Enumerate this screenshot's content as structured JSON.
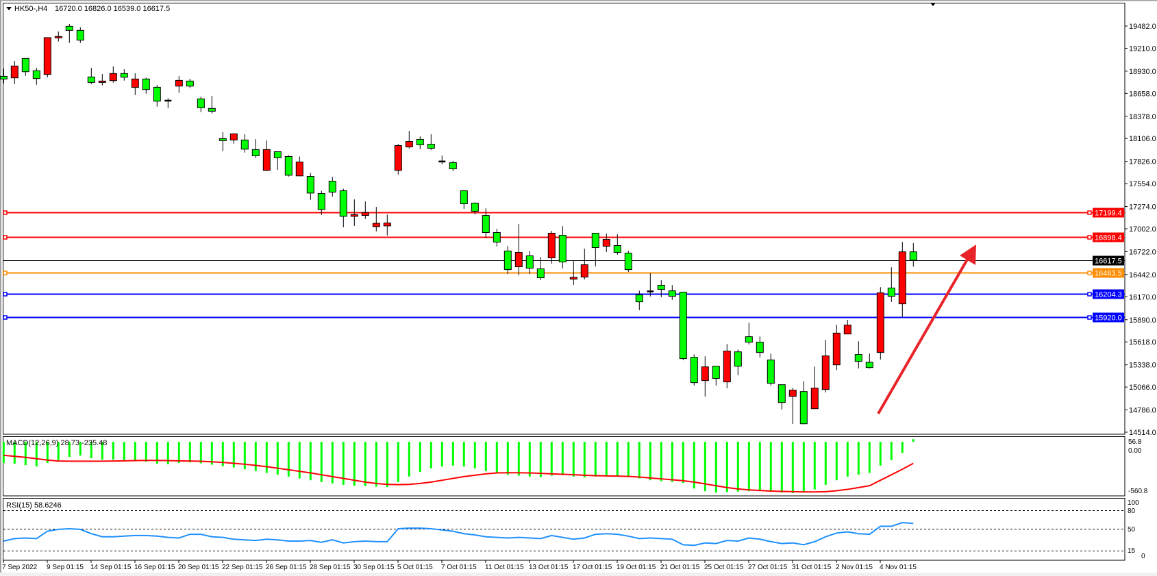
{
  "header": {
    "symbol": "HK50-,H4",
    "ohlc": "16720.0 16826.0 16539.0 16617.5"
  },
  "colors": {
    "bull_candle": "#ff0000",
    "bear_candle": "#00ff00",
    "macd_histogram": "#00ff00",
    "macd_signal": "#ff0000",
    "rsi_line": "#1e90ff",
    "trend_arrow": "#e8232a"
  },
  "chart_data": [
    {
      "type": "candlestick",
      "title": "HK50-,H4",
      "ylim": [
        14514.0,
        19482.0
      ],
      "y_tick_labels": [
        "19482.0",
        "19210.0",
        "18930.0",
        "18658.0",
        "18378.0",
        "18106.0",
        "17826.0",
        "17554.0",
        "17274.0",
        "17002.0",
        "16722.0",
        "16442.0",
        "16170.0",
        "15890.0",
        "15618.0",
        "15338.0",
        "15066.0",
        "14786.0",
        "14514.0"
      ],
      "x_tick_labels": [
        "7 Sep 2022",
        "9 Sep 01:15",
        "14 Sep 01:15",
        "16 Sep 01:15",
        "20 Sep 01:15",
        "22 Sep 01:15",
        "26 Sep 01:15",
        "28 Sep 01:15",
        "30 Sep 01:15",
        "5 Oct 01:15",
        "7 Oct 01:15",
        "11 Oct 01:15",
        "13 Oct 01:15",
        "17 Oct 01:15",
        "19 Oct 01:15",
        "21 Oct 01:15",
        "25 Oct 01:15",
        "27 Oct 01:15",
        "31 Oct 01:15",
        "2 Nov 01:15",
        "4 Nov 01:15"
      ],
      "grid": false,
      "candle_fields": [
        "open",
        "high",
        "low",
        "close"
      ],
      "candles": [
        [
          18867,
          18962,
          18780,
          18834
        ],
        [
          18848,
          19055,
          18770,
          18993
        ],
        [
          19085,
          19085,
          18873,
          18923
        ],
        [
          18935,
          18971,
          18764,
          18840
        ],
        [
          18890,
          19340,
          18854,
          19340
        ],
        [
          19337,
          19415,
          19292,
          19354
        ],
        [
          19479,
          19507,
          19275,
          19429
        ],
        [
          19429,
          19465,
          19275,
          19309
        ],
        [
          18859,
          18971,
          18772,
          18792
        ],
        [
          18792,
          18895,
          18756,
          18809
        ],
        [
          18814,
          18988,
          18789,
          18901
        ],
        [
          18901,
          18954,
          18814,
          18856
        ],
        [
          18731,
          18904,
          18638,
          18834
        ],
        [
          18834,
          18851,
          18655,
          18705
        ],
        [
          18733,
          18761,
          18496,
          18563
        ],
        [
          18571,
          18599,
          18479,
          18571
        ],
        [
          18747,
          18870,
          18664,
          18817
        ],
        [
          18809,
          18837,
          18722,
          18747
        ],
        [
          18591,
          18619,
          18429,
          18482
        ],
        [
          18474,
          18627,
          18412,
          18440
        ],
        [
          18105,
          18183,
          17951,
          18080
        ],
        [
          18088,
          18172,
          18043,
          18163
        ],
        [
          18088,
          18158,
          17934,
          17976
        ],
        [
          17971,
          18099,
          17867,
          17895
        ],
        [
          17716,
          18082,
          17708,
          17971
        ],
        [
          17945,
          17945,
          17722,
          17870
        ],
        [
          17886,
          17903,
          17640,
          17657
        ],
        [
          17649,
          17886,
          17649,
          17819
        ],
        [
          17643,
          17685,
          17355,
          17439
        ],
        [
          17433,
          17467,
          17171,
          17238
        ],
        [
          17584,
          17635,
          17397,
          17450
        ],
        [
          17467,
          17492,
          17020,
          17154
        ],
        [
          17154,
          17361,
          17037,
          17174
        ],
        [
          17165,
          17336,
          17121,
          17201
        ],
        [
          17028,
          17269,
          16970,
          17069
        ],
        [
          17037,
          17176,
          16919,
          17073
        ],
        [
          17716,
          18040,
          17665,
          18020
        ],
        [
          18003,
          18199,
          17984,
          18070
        ],
        [
          18096,
          18132,
          17975,
          18029
        ],
        [
          18037,
          18157,
          17967,
          17987
        ],
        [
          17827,
          17897,
          17791,
          17827
        ],
        [
          17811,
          17830,
          17707,
          17735
        ],
        [
          17467,
          17467,
          17246,
          17308
        ],
        [
          17316,
          17324,
          17179,
          17216
        ],
        [
          17165,
          17252,
          16886,
          16956
        ],
        [
          16956,
          17001,
          16786,
          16839
        ],
        [
          16730,
          16791,
          16447,
          16503
        ],
        [
          16537,
          17059,
          16433,
          16713
        ],
        [
          16671,
          16732,
          16447,
          16520
        ],
        [
          16512,
          16657,
          16375,
          16403
        ],
        [
          16646,
          16976,
          16576,
          16948
        ],
        [
          16922,
          17034,
          16517,
          16596
        ],
        [
          16386,
          16607,
          16316,
          16408
        ],
        [
          16411,
          16758,
          16383,
          16562
        ],
        [
          16948,
          16948,
          16542,
          16772
        ],
        [
          16788,
          16942,
          16718,
          16872
        ],
        [
          16797,
          16934,
          16685,
          16713
        ],
        [
          16704,
          16732,
          16475,
          16503
        ],
        [
          16193,
          16246,
          16006,
          16109
        ],
        [
          16238,
          16459,
          16174,
          16238
        ],
        [
          16311,
          16372,
          16165,
          16260
        ],
        [
          16243,
          16313,
          16132,
          16176
        ],
        [
          16227,
          16227,
          15394,
          15414
        ],
        [
          15430,
          15467,
          15084,
          15120
        ],
        [
          15145,
          15442,
          14950,
          15313
        ],
        [
          15321,
          15321,
          15084,
          15171
        ],
        [
          15129,
          15593,
          15050,
          15506
        ],
        [
          15497,
          15525,
          15210,
          15321
        ],
        [
          15682,
          15852,
          15587,
          15615
        ],
        [
          15615,
          15685,
          15428,
          15489
        ],
        [
          15397,
          15475,
          15084,
          15112
        ],
        [
          15095,
          15095,
          14790,
          14877
        ],
        [
          14952,
          15056,
          14614,
          15028
        ],
        [
          15011,
          15137,
          14609,
          14617
        ],
        [
          14801,
          15316,
          14801,
          15053
        ],
        [
          15036,
          15642,
          15000,
          15447
        ],
        [
          15338,
          15827,
          15276,
          15726
        ],
        [
          15715,
          15888,
          15715,
          15824
        ],
        [
          15464,
          15626,
          15293,
          15380
        ],
        [
          15369,
          15475,
          15293,
          15304
        ],
        [
          15489,
          16288,
          15402,
          16218
        ],
        [
          16277,
          16531,
          16106,
          16176
        ],
        [
          16084,
          16841,
          15925,
          16720
        ],
        [
          16720,
          16826,
          16539,
          16617.5
        ]
      ],
      "price_lines": [
        {
          "price": 17199.4,
          "label": "17199.4",
          "color": "#ff0000"
        },
        {
          "price": 16898.4,
          "label": "16898.4",
          "color": "#ff0000"
        },
        {
          "price": 16617.5,
          "label": "16617.5",
          "color": "#000000",
          "current": true
        },
        {
          "price": 16463.5,
          "label": "16463.5",
          "color": "#ff8c00"
        },
        {
          "price": 16204.3,
          "label": "16204.3",
          "color": "#0000ff"
        },
        {
          "price": 15920.0,
          "label": "15920.0",
          "color": "#0000ff"
        }
      ]
    },
    {
      "type": "bar",
      "title": "MACD(12,26,9) 28.73 -235.48",
      "ylim": [
        -560.8,
        56.8
      ],
      "y_tick_labels": [
        "56.8",
        "0.00",
        "-560.8"
      ],
      "series": [
        {
          "values": [
            -232,
            -240,
            -255,
            -269,
            -232,
            -202,
            -165,
            -150,
            -180,
            -195,
            -195,
            -200,
            -210,
            -218,
            -240,
            -245,
            -232,
            -225,
            -235,
            -250,
            -265,
            -280,
            -300,
            -320,
            -340,
            -360,
            -380,
            -400,
            -420,
            -440,
            -455,
            -470,
            -480,
            -485,
            -490,
            -495,
            -440,
            -380,
            -330,
            -290,
            -270,
            -260,
            -270,
            -290,
            -320,
            -340,
            -360,
            -370,
            -380,
            -385,
            -370,
            -365,
            -380,
            -390,
            -380,
            -370,
            -370,
            -380,
            -400,
            -420,
            -430,
            -440,
            -450,
            -510,
            -540,
            -555,
            -550,
            -545,
            -540,
            -530,
            -540,
            -555,
            -560,
            -555,
            -520,
            -470,
            -420,
            -380,
            -360,
            -340,
            -260,
            -200,
            -120,
            28.73
          ]
        },
        {
          "type": "line",
          "values": [
            -147,
            -158,
            -170,
            -185,
            -200,
            -210,
            -212,
            -212,
            -212,
            -212,
            -210,
            -208,
            -205,
            -203,
            -203,
            -205,
            -208,
            -210,
            -213,
            -218,
            -225,
            -235,
            -245,
            -258,
            -272,
            -288,
            -305,
            -322,
            -340,
            -360,
            -380,
            -400,
            -420,
            -440,
            -455,
            -465,
            -468,
            -465,
            -455,
            -440,
            -420,
            -400,
            -380,
            -365,
            -350,
            -340,
            -338,
            -338,
            -340,
            -345,
            -350,
            -355,
            -360,
            -365,
            -370,
            -373,
            -375,
            -378,
            -385,
            -395,
            -405,
            -415,
            -425,
            -440,
            -460,
            -480,
            -500,
            -515,
            -525,
            -532,
            -538,
            -542,
            -545,
            -548,
            -548,
            -545,
            -535,
            -520,
            -500,
            -480,
            -420,
            -360,
            -300,
            -235.48
          ]
        }
      ]
    },
    {
      "type": "line",
      "title": "RSI(15) 58.6246",
      "ylim": [
        0,
        100
      ],
      "y_tick_labels": [
        "100",
        "80",
        "50",
        "15",
        "0"
      ],
      "levels": [
        80,
        50,
        15
      ],
      "values": [
        30,
        34,
        35,
        34,
        46,
        49,
        50,
        49,
        42,
        37,
        37,
        38,
        39,
        39,
        38,
        36,
        35,
        41,
        41,
        37,
        36,
        33,
        32,
        31,
        33,
        32,
        30,
        30,
        31,
        28,
        32,
        27,
        29,
        30,
        29,
        29,
        50,
        51,
        51,
        50,
        48,
        46,
        42,
        40,
        37,
        36,
        35,
        36,
        35,
        34,
        39,
        36,
        33,
        35,
        41,
        42,
        41,
        38,
        34,
        35,
        34,
        33,
        24,
        23,
        27,
        26,
        31,
        30,
        35,
        33,
        29,
        26,
        27,
        24,
        29,
        37,
        43,
        45,
        42,
        41,
        54,
        54,
        60,
        58.6246
      ]
    }
  ]
}
